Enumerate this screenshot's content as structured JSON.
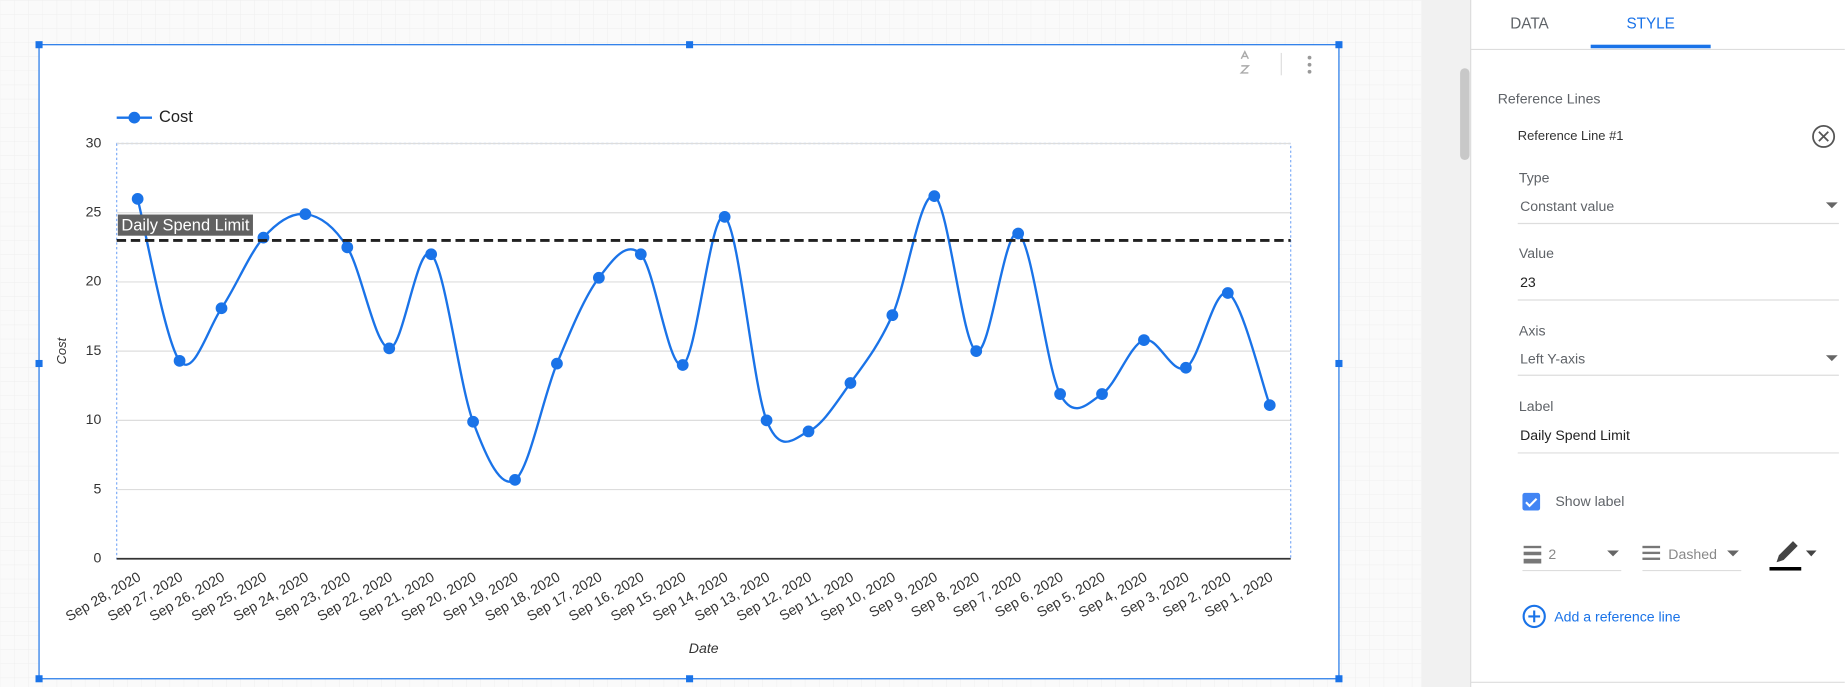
{
  "chart_data": {
    "type": "line",
    "x_label": "Date",
    "y_label": "Cost",
    "categories": [
      "Sep 28, 2020",
      "Sep 27, 2020",
      "Sep 26, 2020",
      "Sep 25, 2020",
      "Sep 24, 2020",
      "Sep 23, 2020",
      "Sep 22, 2020",
      "Sep 21, 2020",
      "Sep 20, 2020",
      "Sep 19, 2020",
      "Sep 18, 2020",
      "Sep 17, 2020",
      "Sep 16, 2020",
      "Sep 15, 2020",
      "Sep 14, 2020",
      "Sep 13, 2020",
      "Sep 12, 2020",
      "Sep 11, 2020",
      "Sep 10, 2020",
      "Sep 9, 2020",
      "Sep 8, 2020",
      "Sep 7, 2020",
      "Sep 6, 2020",
      "Sep 5, 2020",
      "Sep 4, 2020",
      "Sep 3, 2020",
      "Sep 2, 2020",
      "Sep 1, 2020"
    ],
    "series": [
      {
        "name": "Cost",
        "color": "#1a73e8",
        "values": [
          26,
          14.3,
          18.1,
          23.2,
          24.9,
          22.5,
          15.2,
          22,
          9.9,
          5.7,
          14.1,
          20.3,
          22,
          14,
          24.7,
          10,
          9.2,
          12.7,
          17.6,
          26.2,
          15,
          23.5,
          11.9,
          11.9,
          15.8,
          13.8,
          19.2,
          11.1
        ]
      }
    ],
    "ylim": [
      0,
      30
    ],
    "yticks": [
      0,
      5,
      10,
      15,
      20,
      25,
      30
    ],
    "grid": true,
    "legend": "top-left",
    "reference_line": {
      "value": 23,
      "label": "Daily Spend Limit",
      "color": "#212121"
    }
  },
  "panel": {
    "tabs": [
      "DATA",
      "STYLE"
    ],
    "active_tab": 1,
    "section": "Reference Lines",
    "item": "Reference Line #1",
    "type_label": "Type",
    "type_value": "Constant value",
    "value_label": "Value",
    "axis_label": "Axis",
    "axis_value": "Left Y-axis",
    "label_label": "Label",
    "show_label": "Show label",
    "weight": "2",
    "style": "Dashed",
    "add": "Add a reference line"
  }
}
